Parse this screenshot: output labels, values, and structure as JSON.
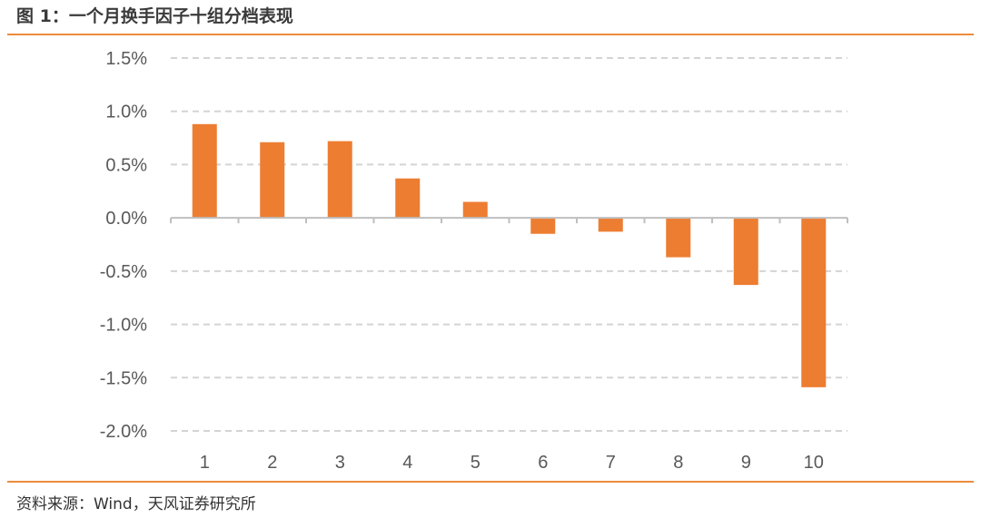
{
  "figure": {
    "title": "图 1：一个月换手因子十组分档表现",
    "source": "资料来源：Wind，天风证券研究所"
  },
  "colors": {
    "bar": "#ed7d31",
    "rule": "#ed8b3c",
    "grid": "#d4d4d4",
    "axis": "#bfbfbf"
  },
  "chart_data": {
    "type": "bar",
    "categories": [
      "1",
      "2",
      "3",
      "4",
      "5",
      "6",
      "7",
      "8",
      "9",
      "10"
    ],
    "values": [
      0.88,
      0.71,
      0.72,
      0.37,
      0.15,
      -0.15,
      -0.13,
      -0.37,
      -0.63,
      -1.59
    ],
    "value_unit": "%",
    "ylim": [
      -2.0,
      1.5
    ],
    "yticks": [
      1.5,
      1.0,
      0.5,
      0.0,
      -0.5,
      -1.0,
      -1.5,
      -2.0
    ],
    "ytick_labels": [
      "1.5%",
      "1.0%",
      "0.5%",
      "0.0%",
      "-0.5%",
      "-1.0%",
      "-1.5%",
      "-2.0%"
    ],
    "grid": true,
    "legend": "none",
    "xlabel": "",
    "ylabel": ""
  }
}
